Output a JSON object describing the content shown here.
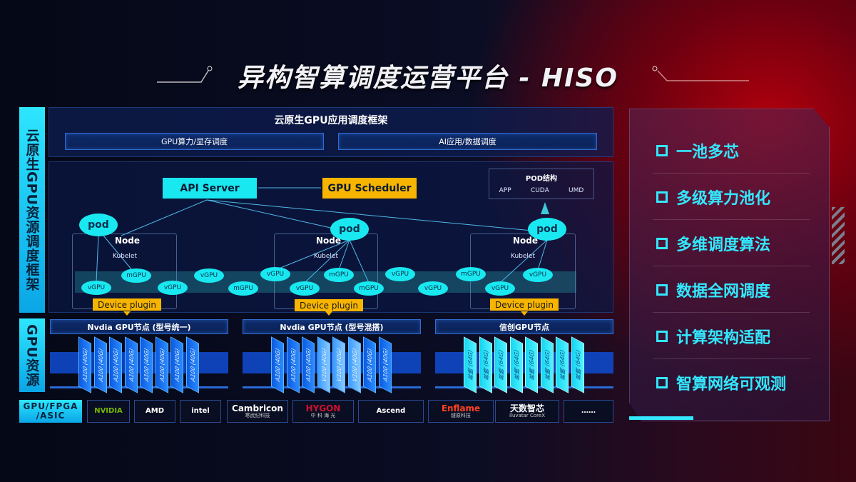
{
  "title": "异构智算调度运营平台 - HISO",
  "left_labels": {
    "framework": "云原生GPU资源调度框架",
    "resources": "GPU资源",
    "hardware": "GPU/FPGA /ASIC"
  },
  "framework": {
    "heading": "云原生GPU应用调度框架",
    "sub": [
      "GPU算力/显存调度",
      "AI应用/数据调度"
    ]
  },
  "control": {
    "api_server": "API Server",
    "gpu_scheduler": "GPU Scheduler",
    "pod_struct": {
      "title": "POD结构",
      "items": [
        "APP",
        "CUDA",
        "UMD"
      ]
    }
  },
  "nodes": [
    {
      "pod": "pod",
      "node": "Node",
      "kubelet": "Kubelet",
      "plugin": "Device plugin"
    },
    {
      "pod": "pod",
      "node": "Node",
      "kubelet": "Kubelet",
      "plugin": "Device plugin"
    },
    {
      "pod": "pod",
      "node": "Node",
      "kubelet": "Kubelet",
      "plugin": "Device plugin"
    }
  ],
  "gpus": [
    "vGPU",
    "mGPU",
    "vGPU",
    "vGPU",
    "mGPU",
    "vGPU",
    "vGPU",
    "mGPU",
    "mGPU",
    "vGPU",
    "vGPU",
    "mGPU",
    "vGPU",
    "vGPU"
  ],
  "gpu_groups": [
    {
      "title": "Nvdia GPU节点 (型号统一)",
      "chips": [
        "A100 (40G)",
        "A100 (40G)",
        "A100 (40G)",
        "A100 (40G)",
        "A100 (40G)",
        "A100 (40G)",
        "A100 (40G)",
        "A100 (40G)"
      ]
    },
    {
      "title": "Nvdia GPU节点 (型号混搭)",
      "chips": [
        "A100 (40G)",
        "A100 (40G)",
        "A100 (40G)",
        "V100 (40G)",
        "V100 (40G)",
        "V100 (40G)",
        "A100 (40G)",
        "A100 (40G)"
      ]
    },
    {
      "title": "信创GPU节点",
      "chips": [
        "昇腾 (64G)",
        "昇腾 (64G)",
        "昇腾 (64G)",
        "昇腾 (64G)",
        "昇腾 (64G)",
        "昇腾 (64G)",
        "昇腾 (64G)",
        "昇腾 (64G)"
      ]
    }
  ],
  "vendors": [
    {
      "name": "NVIDIA"
    },
    {
      "name": "AMD"
    },
    {
      "name": "intel"
    },
    {
      "name": "Cambricon",
      "sub": "寒武纪科技"
    },
    {
      "name": "HYGON",
      "sub": "中 科 海 光"
    },
    {
      "name": "Ascend"
    },
    {
      "name": "Enflame",
      "sub": "燧原科技"
    },
    {
      "name": "天数智芯",
      "sub": "Iluvatar CoreX"
    },
    {
      "name": "……"
    }
  ],
  "features": [
    "一池多芯",
    "多级算力池化",
    "多维调度算法",
    "数据全网调度",
    "计算架构适配",
    "智算网络可观测"
  ],
  "colors": {
    "cyan": "#19e8f0",
    "amber": "#f7b500",
    "blue": "#1048c8",
    "red": "#b0000c"
  }
}
